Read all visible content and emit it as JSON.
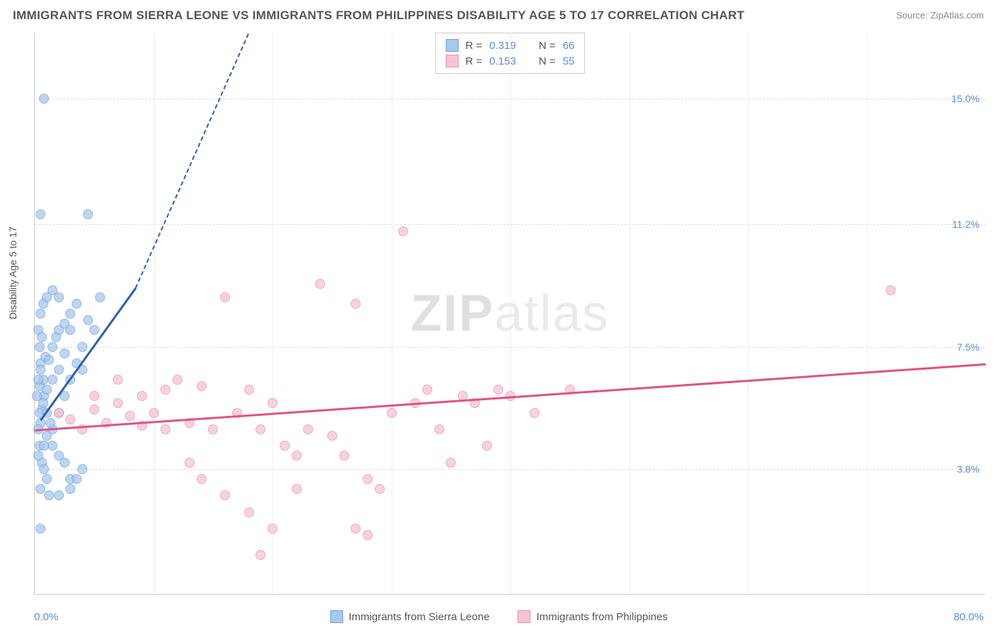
{
  "title": "IMMIGRANTS FROM SIERRA LEONE VS IMMIGRANTS FROM PHILIPPINES DISABILITY AGE 5 TO 17 CORRELATION CHART",
  "source": "Source: ZipAtlas.com",
  "y_axis_label": "Disability Age 5 to 17",
  "watermark_bold": "ZIP",
  "watermark_light": "atlas",
  "chart": {
    "type": "scatter",
    "xlim": [
      0,
      80
    ],
    "ylim": [
      0,
      17
    ],
    "x_tick_min": "0.0%",
    "x_tick_max": "80.0%",
    "y_ticks": [
      {
        "v": 3.8,
        "label": "3.8%"
      },
      {
        "v": 7.5,
        "label": "7.5%"
      },
      {
        "v": 11.2,
        "label": "11.2%"
      },
      {
        "v": 15.0,
        "label": "15.0%"
      }
    ],
    "x_gridlines": [
      10,
      20,
      30,
      40,
      50,
      60,
      70
    ],
    "background_color": "#ffffff",
    "grid_color": "#dddddd",
    "series": [
      {
        "name": "Immigrants from Sierra Leone",
        "color_fill": "#a8c8ec",
        "color_stroke": "#6fa3dd",
        "trend_color": "#2d5fa8",
        "R": "0.319",
        "N": "66",
        "trend": {
          "x1": 0.5,
          "y1": 5.3,
          "x2": 8.5,
          "y2": 9.3,
          "dash_to_x": 18,
          "dash_to_y": 17
        },
        "points": [
          [
            0.5,
            5.2
          ],
          [
            0.6,
            5.6
          ],
          [
            0.8,
            6.0
          ],
          [
            0.4,
            6.3
          ],
          [
            0.7,
            6.5
          ],
          [
            1.0,
            6.2
          ],
          [
            0.5,
            7.0
          ],
          [
            0.9,
            7.2
          ],
          [
            1.2,
            7.1
          ],
          [
            0.3,
            5.0
          ],
          [
            1.5,
            7.5
          ],
          [
            1.8,
            7.8
          ],
          [
            2.0,
            8.0
          ],
          [
            2.5,
            7.3
          ],
          [
            3.0,
            8.5
          ],
          [
            0.4,
            4.5
          ],
          [
            0.6,
            4.0
          ],
          [
            0.8,
            3.8
          ],
          [
            1.0,
            3.5
          ],
          [
            0.5,
            3.2
          ],
          [
            1.5,
            5.0
          ],
          [
            2.0,
            5.5
          ],
          [
            0.3,
            8.0
          ],
          [
            0.5,
            8.5
          ],
          [
            0.7,
            8.8
          ],
          [
            1.0,
            9.0
          ],
          [
            1.5,
            9.2
          ],
          [
            2.0,
            9.0
          ],
          [
            0.4,
            7.5
          ],
          [
            0.6,
            7.8
          ],
          [
            2.5,
            8.2
          ],
          [
            3.0,
            8.0
          ],
          [
            3.5,
            8.8
          ],
          [
            4.0,
            7.5
          ],
          [
            4.5,
            8.3
          ],
          [
            5.0,
            8.0
          ],
          [
            5.5,
            9.0
          ],
          [
            0.2,
            6.0
          ],
          [
            0.3,
            6.5
          ],
          [
            0.5,
            6.8
          ],
          [
            1.0,
            4.8
          ],
          [
            1.5,
            4.5
          ],
          [
            2.0,
            4.2
          ],
          [
            2.5,
            4.0
          ],
          [
            3.0,
            3.5
          ],
          [
            3.5,
            3.5
          ],
          [
            0.5,
            11.5
          ],
          [
            4.5,
            11.5
          ],
          [
            0.8,
            15.0
          ],
          [
            1.5,
            6.5
          ],
          [
            2.0,
            6.8
          ],
          [
            2.5,
            6.0
          ],
          [
            3.0,
            6.5
          ],
          [
            3.5,
            7.0
          ],
          [
            4.0,
            6.8
          ],
          [
            0.4,
            5.5
          ],
          [
            0.7,
            5.8
          ],
          [
            1.0,
            5.5
          ],
          [
            1.3,
            5.2
          ],
          [
            0.5,
            2.0
          ],
          [
            1.2,
            3.0
          ],
          [
            2.0,
            3.0
          ],
          [
            3.0,
            3.2
          ],
          [
            4.0,
            3.8
          ],
          [
            0.3,
            4.2
          ],
          [
            0.8,
            4.5
          ]
        ]
      },
      {
        "name": "Immigrants from Philippines",
        "color_fill": "#f5c4d2",
        "color_stroke": "#e88fad",
        "trend_color": "#e05285",
        "R": "0.153",
        "N": "55",
        "trend": {
          "x1": 0,
          "y1": 5.0,
          "x2": 80,
          "y2": 7.0
        },
        "points": [
          [
            2,
            5.5
          ],
          [
            3,
            5.3
          ],
          [
            4,
            5.0
          ],
          [
            5,
            5.6
          ],
          [
            6,
            5.2
          ],
          [
            7,
            5.8
          ],
          [
            8,
            5.4
          ],
          [
            9,
            5.1
          ],
          [
            10,
            5.5
          ],
          [
            11,
            5.0
          ],
          [
            12,
            6.5
          ],
          [
            13,
            5.2
          ],
          [
            14,
            6.3
          ],
          [
            15,
            5.0
          ],
          [
            16,
            9.0
          ],
          [
            17,
            5.5
          ],
          [
            18,
            6.2
          ],
          [
            19,
            5.0
          ],
          [
            20,
            5.8
          ],
          [
            21,
            4.5
          ],
          [
            22,
            4.2
          ],
          [
            23,
            5.0
          ],
          [
            24,
            9.4
          ],
          [
            25,
            4.8
          ],
          [
            26,
            4.2
          ],
          [
            27,
            8.8
          ],
          [
            28,
            3.5
          ],
          [
            29,
            3.2
          ],
          [
            30,
            5.5
          ],
          [
            31,
            11.0
          ],
          [
            32,
            5.8
          ],
          [
            33,
            6.2
          ],
          [
            34,
            5.0
          ],
          [
            35,
            4.0
          ],
          [
            36,
            6.0
          ],
          [
            37,
            5.8
          ],
          [
            38,
            4.5
          ],
          [
            39,
            6.2
          ],
          [
            40,
            6.0
          ],
          [
            42,
            5.5
          ],
          [
            45,
            6.2
          ],
          [
            72,
            9.2
          ],
          [
            14,
            3.5
          ],
          [
            16,
            3.0
          ],
          [
            18,
            2.5
          ],
          [
            20,
            2.0
          ],
          [
            22,
            3.2
          ],
          [
            19,
            1.2
          ],
          [
            28,
            1.8
          ],
          [
            27,
            2.0
          ],
          [
            5,
            6.0
          ],
          [
            7,
            6.5
          ],
          [
            9,
            6.0
          ],
          [
            11,
            6.2
          ],
          [
            13,
            4.0
          ]
        ]
      }
    ]
  },
  "legend_labels": {
    "R": "R =",
    "N": "N ="
  }
}
